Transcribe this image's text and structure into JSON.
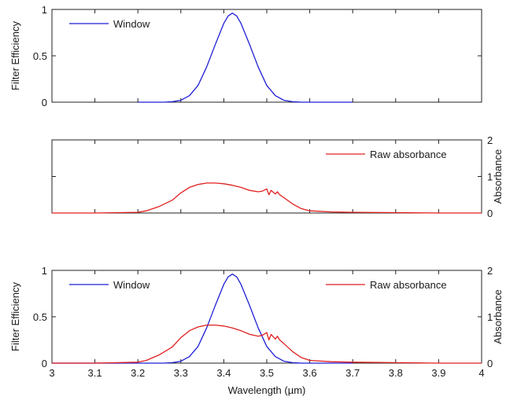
{
  "chart_data": [
    {
      "type": "line",
      "panel": "top",
      "xlim": [
        3,
        4
      ],
      "ylim": [
        0,
        1
      ],
      "ylabel": "Filter Efficiency",
      "yticks": [
        0,
        0.5,
        1
      ],
      "ytick_labels": [
        "0",
        "0.5",
        "1"
      ],
      "legend": [
        "Window"
      ],
      "legend_placement": "top-left",
      "grid": false,
      "series": [
        {
          "name": "Window",
          "color": "#1f1fd6",
          "x": [
            3.2,
            3.22,
            3.24,
            3.26,
            3.28,
            3.3,
            3.32,
            3.34,
            3.36,
            3.38,
            3.4,
            3.41,
            3.42,
            3.43,
            3.44,
            3.46,
            3.48,
            3.5,
            3.52,
            3.54,
            3.56,
            3.58,
            3.6,
            3.65,
            3.7
          ],
          "y": [
            0.0,
            0.0,
            0.0,
            0.0,
            0.005,
            0.02,
            0.07,
            0.18,
            0.38,
            0.62,
            0.85,
            0.93,
            0.96,
            0.93,
            0.85,
            0.62,
            0.38,
            0.18,
            0.07,
            0.02,
            0.005,
            0.0,
            0.0,
            0.0,
            0.0
          ]
        }
      ]
    },
    {
      "type": "line",
      "panel": "middle",
      "xlim": [
        3,
        4
      ],
      "ylim": [
        0,
        2
      ],
      "ylabel": "Absorbance",
      "yticks": [
        0,
        1,
        2
      ],
      "ytick_labels": [
        "0",
        "1",
        "2"
      ],
      "y_axis_side": "right",
      "legend": [
        "Raw absorbance"
      ],
      "legend_placement": "top-right",
      "grid": false,
      "series": [
        {
          "name": "Raw absorbance",
          "color": "#e02020",
          "x": [
            3.0,
            3.1,
            3.2,
            3.22,
            3.25,
            3.28,
            3.3,
            3.32,
            3.34,
            3.36,
            3.38,
            3.4,
            3.42,
            3.44,
            3.46,
            3.48,
            3.49,
            3.5,
            3.505,
            3.51,
            3.52,
            3.525,
            3.53,
            3.54,
            3.56,
            3.58,
            3.6,
            3.65,
            3.7,
            3.8,
            3.9,
            4.0
          ],
          "y": [
            0.0,
            0.0,
            0.02,
            0.06,
            0.18,
            0.35,
            0.55,
            0.7,
            0.78,
            0.82,
            0.82,
            0.8,
            0.76,
            0.7,
            0.62,
            0.58,
            0.6,
            0.66,
            0.5,
            0.62,
            0.52,
            0.58,
            0.5,
            0.42,
            0.25,
            0.12,
            0.06,
            0.03,
            0.02,
            0.01,
            0.0,
            0.0
          ]
        }
      ]
    },
    {
      "type": "line",
      "panel": "bottom",
      "xlim": [
        3,
        4
      ],
      "ylim_left": [
        0,
        1
      ],
      "ylim_right": [
        0,
        2
      ],
      "xlabel": "Wavelength (µm)",
      "ylabel_left": "Filter Efficiency",
      "ylabel_right": "Absorbance",
      "xticks": [
        3,
        3.1,
        3.2,
        3.3,
        3.4,
        3.5,
        3.6,
        3.7,
        3.8,
        3.9,
        4
      ],
      "xtick_labels": [
        "3",
        "3.1",
        "3.2",
        "3.3",
        "3.4",
        "3.5",
        "3.6",
        "3.7",
        "3.8",
        "3.9",
        "4"
      ],
      "yticks_left": [
        0,
        0.5,
        1
      ],
      "ytick_labels_left": [
        "0",
        "0.5",
        "1"
      ],
      "yticks_right": [
        0,
        1,
        2
      ],
      "ytick_labels_right": [
        "0",
        "1",
        "2"
      ],
      "legend": [
        "Window",
        "Raw absorbance"
      ],
      "grid": false,
      "series": [
        {
          "name": "Window",
          "axis": "left",
          "color": "#1f1fd6",
          "x": [
            3.0,
            3.1,
            3.2,
            3.26,
            3.28,
            3.3,
            3.32,
            3.34,
            3.36,
            3.38,
            3.4,
            3.41,
            3.42,
            3.43,
            3.44,
            3.46,
            3.48,
            3.5,
            3.52,
            3.54,
            3.56,
            3.58,
            3.6,
            3.7
          ],
          "y": [
            0.0,
            0.0,
            0.0,
            0.0,
            0.005,
            0.02,
            0.07,
            0.18,
            0.38,
            0.62,
            0.85,
            0.93,
            0.96,
            0.93,
            0.85,
            0.62,
            0.38,
            0.18,
            0.07,
            0.02,
            0.005,
            0.0,
            0.0,
            0.0
          ]
        },
        {
          "name": "Raw absorbance",
          "axis": "right",
          "color": "#e02020",
          "x": [
            3.0,
            3.1,
            3.2,
            3.22,
            3.25,
            3.28,
            3.3,
            3.32,
            3.34,
            3.36,
            3.38,
            3.4,
            3.42,
            3.44,
            3.46,
            3.48,
            3.49,
            3.5,
            3.505,
            3.51,
            3.52,
            3.525,
            3.53,
            3.54,
            3.56,
            3.58,
            3.6,
            3.65,
            3.7,
            3.8,
            3.9,
            4.0
          ],
          "y": [
            0.0,
            0.0,
            0.02,
            0.06,
            0.18,
            0.35,
            0.55,
            0.7,
            0.78,
            0.82,
            0.82,
            0.8,
            0.76,
            0.7,
            0.62,
            0.58,
            0.6,
            0.66,
            0.5,
            0.62,
            0.52,
            0.58,
            0.5,
            0.42,
            0.25,
            0.12,
            0.06,
            0.03,
            0.02,
            0.01,
            0.0,
            0.0
          ]
        }
      ]
    }
  ]
}
